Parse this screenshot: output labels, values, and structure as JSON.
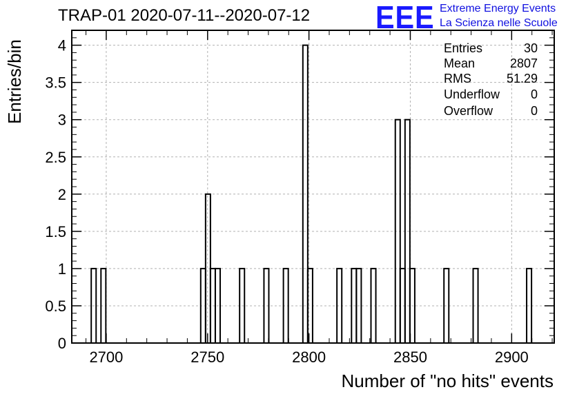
{
  "title": "TRAP-01 2020-07-11--2020-07-12",
  "logo": {
    "mark": "EEE",
    "line1": "Extreme Energy Events",
    "line2": "La Scienza nelle Scuole",
    "color": "#1a1aff"
  },
  "stats": [
    {
      "key": "Entries",
      "value": "30"
    },
    {
      "key": "Mean",
      "value": "2807"
    },
    {
      "key": "RMS",
      "value": "51.29"
    },
    {
      "key": "Underflow",
      "value": "0"
    },
    {
      "key": "Overflow",
      "value": "0"
    }
  ],
  "chart_data": {
    "type": "bar",
    "style": "step-histogram",
    "xlabel": "Number of \"no hits\" events",
    "ylabel": "Entries/bin",
    "xlim": [
      2683,
      2921
    ],
    "ylim": [
      0,
      4.2
    ],
    "bin_width": 2.4,
    "xticks": [
      2700,
      2750,
      2800,
      2850,
      2900
    ],
    "xtick_labels": [
      "2700",
      "2750",
      "2800",
      "2850",
      "2900"
    ],
    "yticks": [
      0,
      0.5,
      1,
      1.5,
      2,
      2.5,
      3,
      3.5,
      4
    ],
    "ytick_labels": [
      "0",
      "0.5",
      "1",
      "1.5",
      "2",
      "2.5",
      "3",
      "3.5",
      "4"
    ],
    "grid": true,
    "bins": [
      {
        "lo": 2692.6,
        "count": 1
      },
      {
        "lo": 2697.4,
        "count": 1
      },
      {
        "lo": 2746.6,
        "count": 1
      },
      {
        "lo": 2749.0,
        "count": 2
      },
      {
        "lo": 2751.4,
        "count": 1
      },
      {
        "lo": 2753.8,
        "count": 1
      },
      {
        "lo": 2765.8,
        "count": 1
      },
      {
        "lo": 2777.8,
        "count": 1
      },
      {
        "lo": 2787.4,
        "count": 1
      },
      {
        "lo": 2797.0,
        "count": 4
      },
      {
        "lo": 2799.4,
        "count": 1
      },
      {
        "lo": 2813.8,
        "count": 1
      },
      {
        "lo": 2821.0,
        "count": 1
      },
      {
        "lo": 2823.4,
        "count": 1
      },
      {
        "lo": 2830.6,
        "count": 1
      },
      {
        "lo": 2842.6,
        "count": 3
      },
      {
        "lo": 2845.0,
        "count": 1
      },
      {
        "lo": 2847.4,
        "count": 3
      },
      {
        "lo": 2849.8,
        "count": 1
      },
      {
        "lo": 2866.6,
        "count": 1
      },
      {
        "lo": 2881.0,
        "count": 1
      },
      {
        "lo": 2907.4,
        "count": 1
      }
    ]
  }
}
